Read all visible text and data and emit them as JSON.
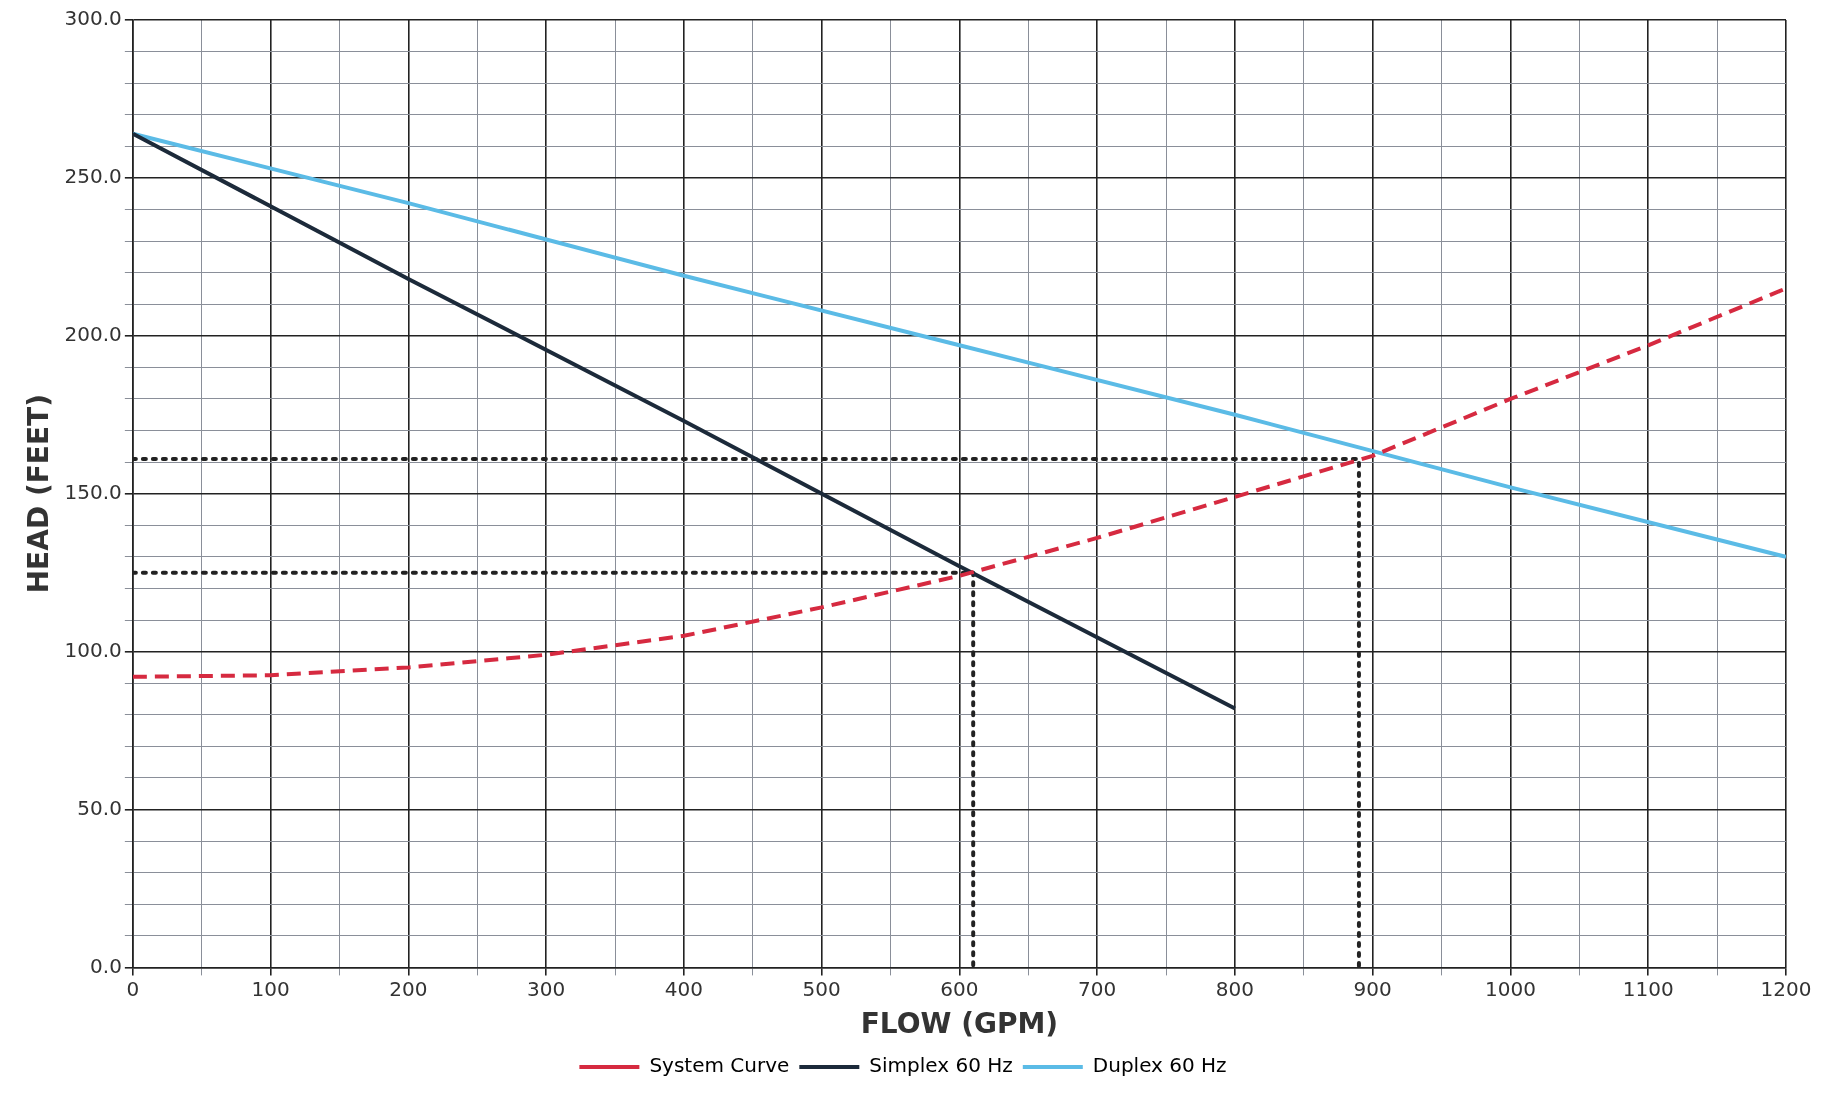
{
  "chart_data": {
    "type": "line",
    "xlabel": "FLOW (GPM)",
    "ylabel": "HEAD (FEET)",
    "xlim": [
      0,
      1200
    ],
    "xticks": [
      0,
      {
        "value": 50,
        "label": null
      },
      100,
      {
        "value": 150,
        "label": null
      },
      200,
      {
        "value": 250,
        "label": null
      },
      300,
      {
        "value": 350,
        "label": null
      },
      400,
      {
        "value": 450,
        "label": null
      },
      500,
      {
        "value": 550,
        "label": null
      },
      600,
      {
        "value": 650,
        "label": null
      },
      700,
      {
        "value": 750,
        "label": null
      },
      800,
      {
        "value": 850,
        "label": null
      },
      900,
      {
        "value": 950,
        "label": null
      },
      1000,
      {
        "value": 1050,
        "label": null
      },
      1100,
      {
        "value": 1150,
        "label": null
      },
      1200
    ],
    "ylim": [
      0,
      300
    ],
    "yticks": [
      {
        "value": 0,
        "label": "0.0"
      },
      {
        "value": 10,
        "label": null
      },
      {
        "value": 20,
        "label": null
      },
      {
        "value": 30,
        "label": null
      },
      {
        "value": 40,
        "label": null
      },
      {
        "value": 50,
        "label": "50.0"
      },
      {
        "value": 60,
        "label": null
      },
      {
        "value": 70,
        "label": null
      },
      {
        "value": 80,
        "label": null
      },
      {
        "value": 90,
        "label": null
      },
      {
        "value": 100,
        "label": "100.0"
      },
      {
        "value": 110,
        "label": null
      },
      {
        "value": 120,
        "label": null
      },
      {
        "value": 130,
        "label": null
      },
      {
        "value": 140,
        "label": null
      },
      {
        "value": 150,
        "label": "150.0"
      },
      {
        "value": 160,
        "label": null
      },
      {
        "value": 170,
        "label": null
      },
      {
        "value": 180,
        "label": null
      },
      {
        "value": 190,
        "label": null
      },
      {
        "value": 200,
        "label": "200.0"
      },
      {
        "value": 210,
        "label": null
      },
      {
        "value": 220,
        "label": null
      },
      {
        "value": 230,
        "label": null
      },
      {
        "value": 240,
        "label": null
      },
      {
        "value": 250,
        "label": "250.0"
      },
      {
        "value": 260,
        "label": null
      },
      {
        "value": 270,
        "label": null
      },
      {
        "value": 280,
        "label": null
      },
      {
        "value": 290,
        "label": null
      },
      {
        "value": 300,
        "label": "300.0"
      }
    ],
    "grid": true,
    "legend": "bottom",
    "marker": "none",
    "series": [
      {
        "name": "System Curve",
        "color": "#d62a40",
        "line_style": "dashed",
        "x": [
          0,
          100,
          200,
          300,
          400,
          500,
          600,
          700,
          800,
          900,
          1000,
          1100,
          1200
        ],
        "values": [
          92,
          92.5,
          95,
          99,
          105,
          114,
          124,
          136,
          149,
          162,
          180,
          197,
          215
        ]
      },
      {
        "name": "Simplex 60 Hz",
        "color": "#1c2a3a",
        "line_style": "solid",
        "x": [
          0,
          200,
          400,
          600,
          800
        ],
        "values": [
          264,
          218,
          173,
          127,
          82
        ]
      },
      {
        "name": "Duplex 60 Hz",
        "color": "#5bbbe6",
        "line_style": "solid",
        "x": [
          0,
          200,
          400,
          600,
          800,
          1000,
          1200
        ],
        "values": [
          264,
          242,
          219,
          197,
          175,
          152,
          130
        ]
      },
      {
        "color": "#222222",
        "line_style": "dotted",
        "x": [
          0,
          610,
          610
        ],
        "values": [
          125,
          125,
          0
        ]
      },
      {
        "color": "#222222",
        "line_style": "dotted",
        "x": [
          0,
          890,
          890
        ],
        "values": [
          161,
          161,
          0
        ]
      }
    ]
  }
}
